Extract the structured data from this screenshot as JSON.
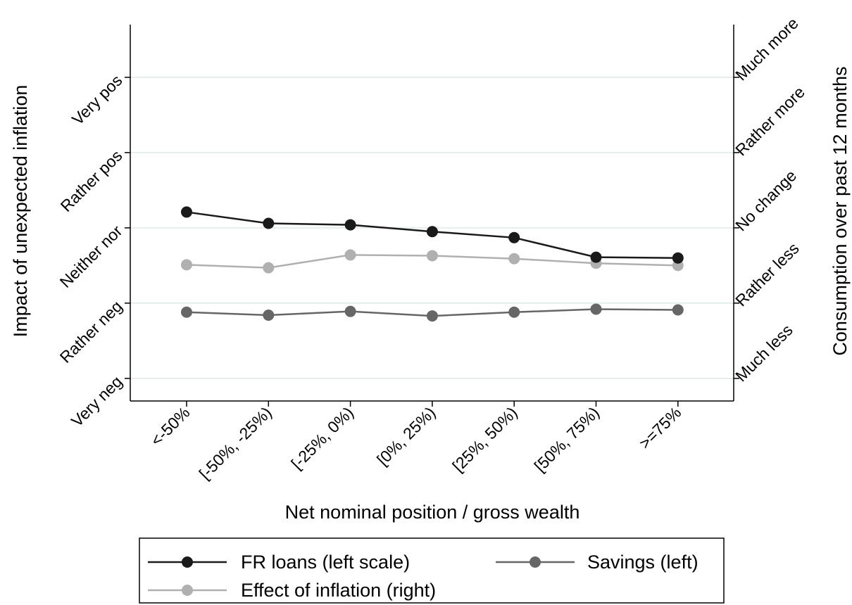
{
  "chart_data": {
    "type": "line",
    "xlabel": "Net nominal position / gross wealth",
    "ylabel_left": "Impact of unexpected inflation",
    "ylabel_right": "Consumption over past 12 months",
    "categories": [
      "<-50%",
      "[-50%, -25%)",
      "[-25%, 0%)",
      "[0%, 25%)",
      "[25%, 50%)",
      "[50%, 75%)",
      ">=75%"
    ],
    "left_axis": {
      "range": [
        0.7,
        5.7
      ],
      "ticks": [
        {
          "value": 1,
          "label": "Very neg"
        },
        {
          "value": 2,
          "label": "Rather neg"
        },
        {
          "value": 3,
          "label": "Neither nor"
        },
        {
          "value": 4,
          "label": "Rather pos"
        },
        {
          "value": 5,
          "label": "Very pos"
        }
      ]
    },
    "right_axis": {
      "range": [
        0.7,
        5.7
      ],
      "ticks": [
        {
          "value": 1,
          "label": "Much less"
        },
        {
          "value": 2,
          "label": "Rather less"
        },
        {
          "value": 3,
          "label": "No change"
        },
        {
          "value": 4,
          "label": "Rather more"
        },
        {
          "value": 5,
          "label": "Much more"
        }
      ]
    },
    "grid": true,
    "legend_position": "bottom",
    "series": [
      {
        "name": "FR loans (left scale)",
        "axis": "left",
        "color": "#1a1a1a",
        "values": [
          3.21,
          3.06,
          3.04,
          2.95,
          2.87,
          2.61,
          2.6
        ]
      },
      {
        "name": "Savings (left)",
        "axis": "left",
        "color": "#666666",
        "values": [
          1.88,
          1.84,
          1.89,
          1.83,
          1.88,
          1.92,
          1.91
        ]
      },
      {
        "name": "Effect of inflation (right)",
        "axis": "right",
        "color": "#b0b0b0",
        "values": [
          2.51,
          2.47,
          2.64,
          2.63,
          2.59,
          2.53,
          2.5
        ]
      }
    ]
  }
}
